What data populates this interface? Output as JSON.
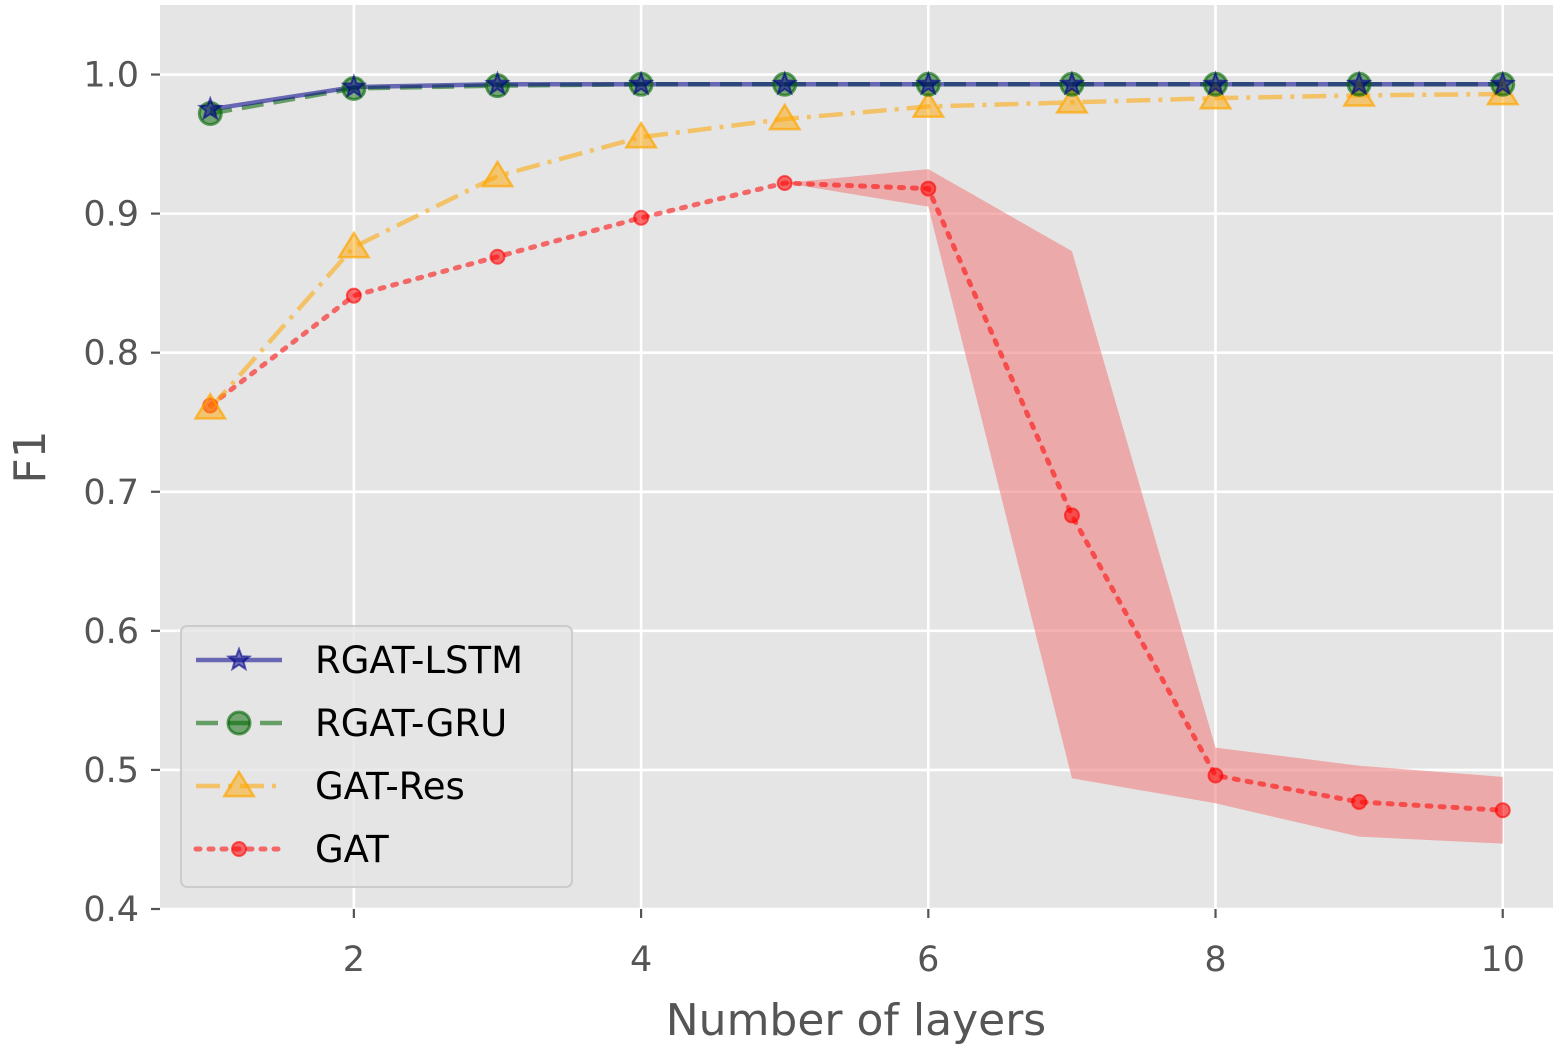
{
  "chart_data": {
    "type": "line",
    "xlabel": "Number of layers",
    "ylabel": "F1",
    "xlim": [
      0.65,
      10.35
    ],
    "ylim": [
      0.4,
      1.05
    ],
    "xticks": [
      2,
      4,
      6,
      8,
      10
    ],
    "yticks": [
      0.4,
      0.5,
      0.6,
      0.7,
      0.8,
      0.9,
      1.0
    ],
    "xtick_labels": [
      "2",
      "4",
      "6",
      "8",
      "10"
    ],
    "ytick_labels": [
      "0.4",
      "0.5",
      "0.6",
      "0.7",
      "0.8",
      "0.9",
      "1.0"
    ],
    "grid": true,
    "legend_position": "lower-left",
    "x": [
      1,
      2,
      3,
      4,
      5,
      6,
      7,
      8,
      9,
      10
    ],
    "series": [
      {
        "name": "RGAT-LSTM",
        "values": [
          0.975,
          0.991,
          0.993,
          0.993,
          0.993,
          0.993,
          0.993,
          0.993,
          0.993,
          0.993
        ],
        "color": "#00008b",
        "marker": "star",
        "linestyle": "solid"
      },
      {
        "name": "RGAT-GRU",
        "values": [
          0.972,
          0.99,
          0.992,
          0.993,
          0.993,
          0.993,
          0.993,
          0.993,
          0.993,
          0.993
        ],
        "color": "#006400",
        "marker": "circle",
        "linestyle": "dashed"
      },
      {
        "name": "GAT-Res",
        "values": [
          0.76,
          0.876,
          0.927,
          0.955,
          0.968,
          0.977,
          0.98,
          0.983,
          0.985,
          0.986
        ],
        "color": "#ffa500",
        "marker": "triangle",
        "linestyle": "dashdot"
      },
      {
        "name": "GAT",
        "values": [
          0.762,
          0.841,
          0.869,
          0.897,
          0.922,
          0.918,
          0.683,
          0.496,
          0.477,
          0.471
        ],
        "lower": [
          0.762,
          0.841,
          0.869,
          0.897,
          0.922,
          0.905,
          0.494,
          0.476,
          0.452,
          0.447
        ],
        "upper": [
          0.762,
          0.841,
          0.869,
          0.897,
          0.922,
          0.932,
          0.873,
          0.516,
          0.503,
          0.495
        ],
        "color": "#ff0000",
        "band_color": "#f08080",
        "marker": "small-circle",
        "linestyle": "dotted"
      }
    ]
  }
}
